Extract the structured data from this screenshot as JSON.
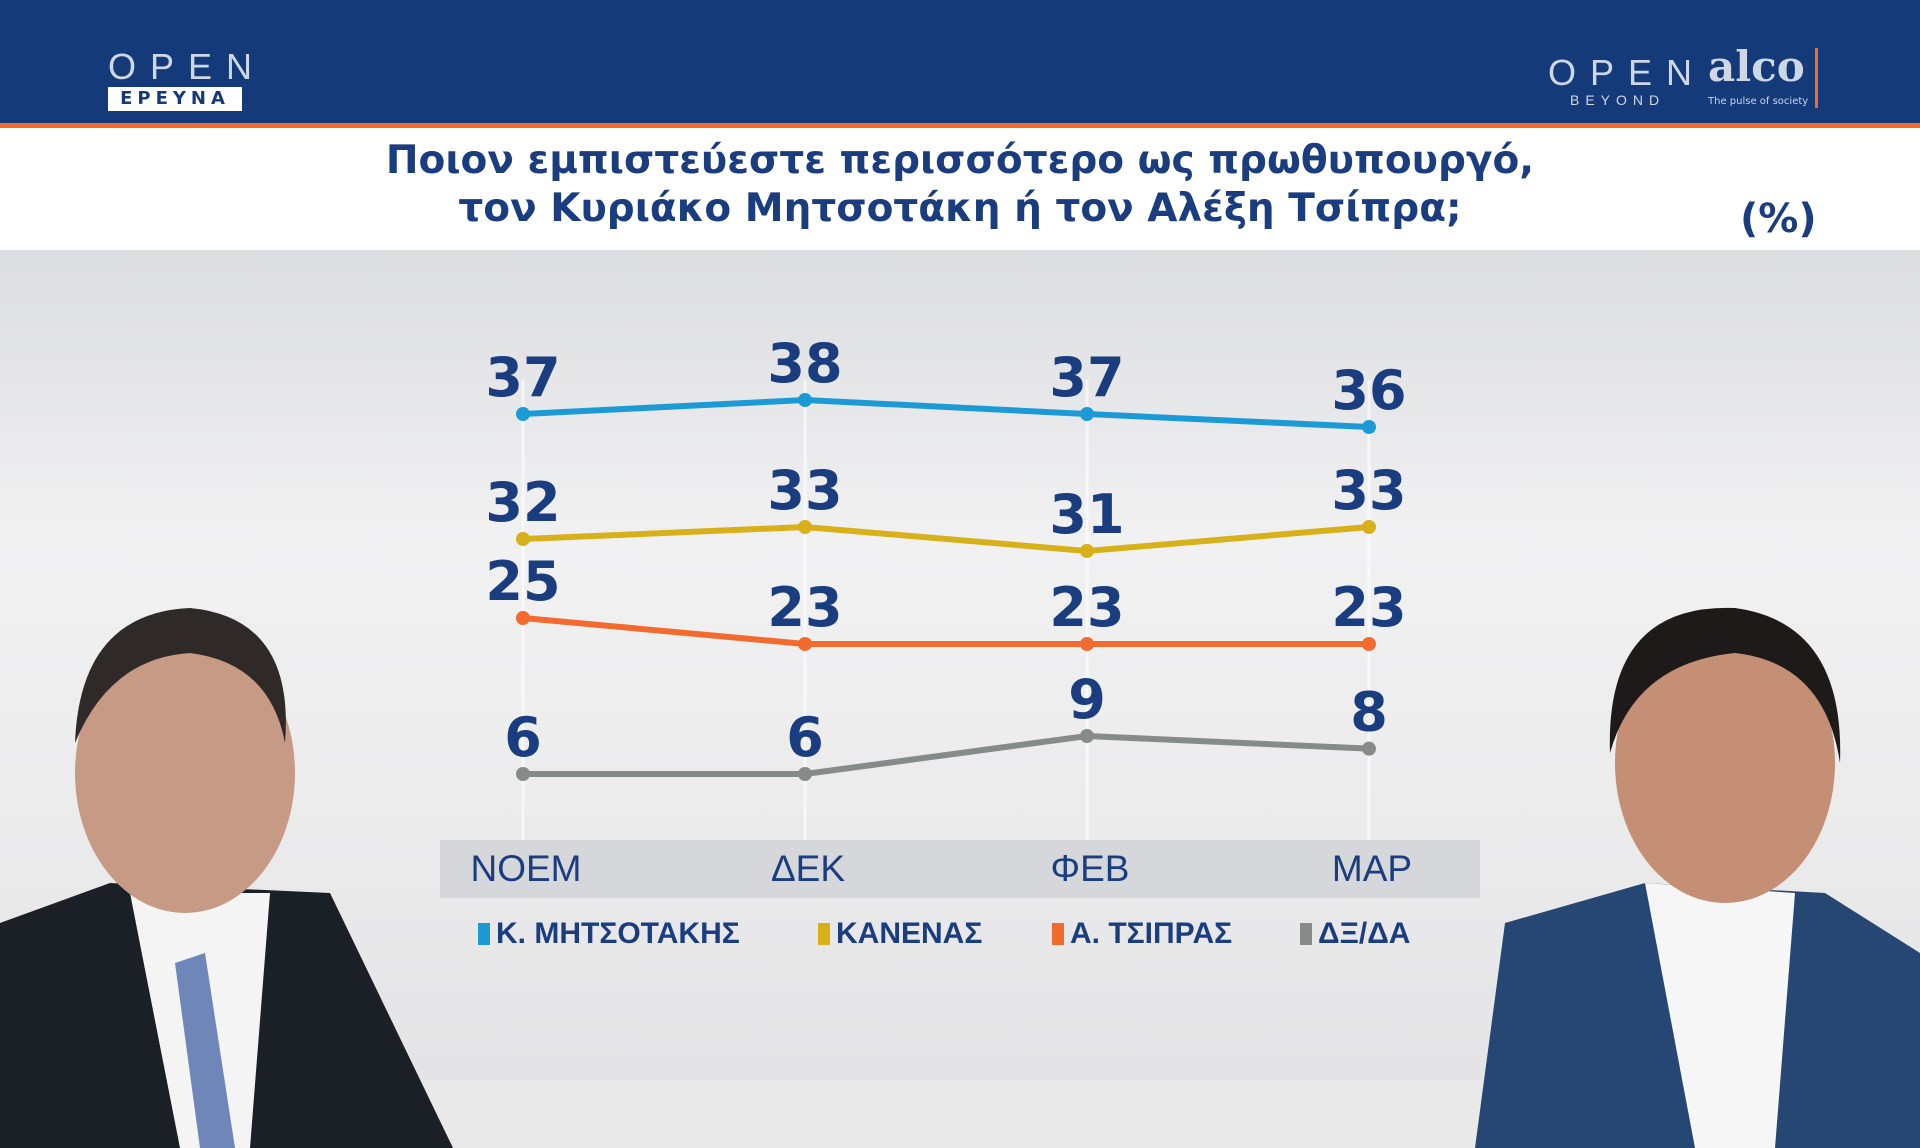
{
  "header": {
    "left_logo_top": "OPEN",
    "left_logo_bottom": "ΕΡΕΥΝΑ",
    "right_logo_top": "OPEN",
    "right_logo_bottom": "BEYOND",
    "partner_logo": "alco",
    "partner_tagline": "The pulse of society"
  },
  "colors": {
    "header": "#153a7a",
    "accent": "#f26a2e",
    "text": "#1a3d80"
  },
  "chart_data": {
    "type": "line",
    "title": [
      "Ποιον εμπιστεύεστε περισσότερο ως πρωθυπουργό,",
      "τον Κυριάκο Μητσοτάκη ή τον Αλέξη Τσίπρα;"
    ],
    "unit": "(%)",
    "categories": [
      "ΝΟΕΜ",
      "ΔΕΚ",
      "ΦΕΒ",
      "ΜΑΡ"
    ],
    "series": [
      {
        "name": "Κ. ΜΗΤΣΟΤΑΚΗΣ",
        "color": "#1c9ad6",
        "values": [
          37,
          38,
          37,
          36
        ]
      },
      {
        "name": "ΚΑΝΕΝΑΣ",
        "color": "#d8b01a",
        "values": [
          32,
          33,
          31,
          33
        ]
      },
      {
        "name": "Α. ΤΣΙΠΡΑΣ",
        "color": "#f26a2e",
        "values": [
          25,
          23,
          23,
          23
        ]
      },
      {
        "name": "ΔΞ/ΔΑ",
        "color": "#858b88",
        "values": [
          6,
          6,
          9,
          8
        ]
      }
    ],
    "legend": "bottom",
    "grid": false
  }
}
